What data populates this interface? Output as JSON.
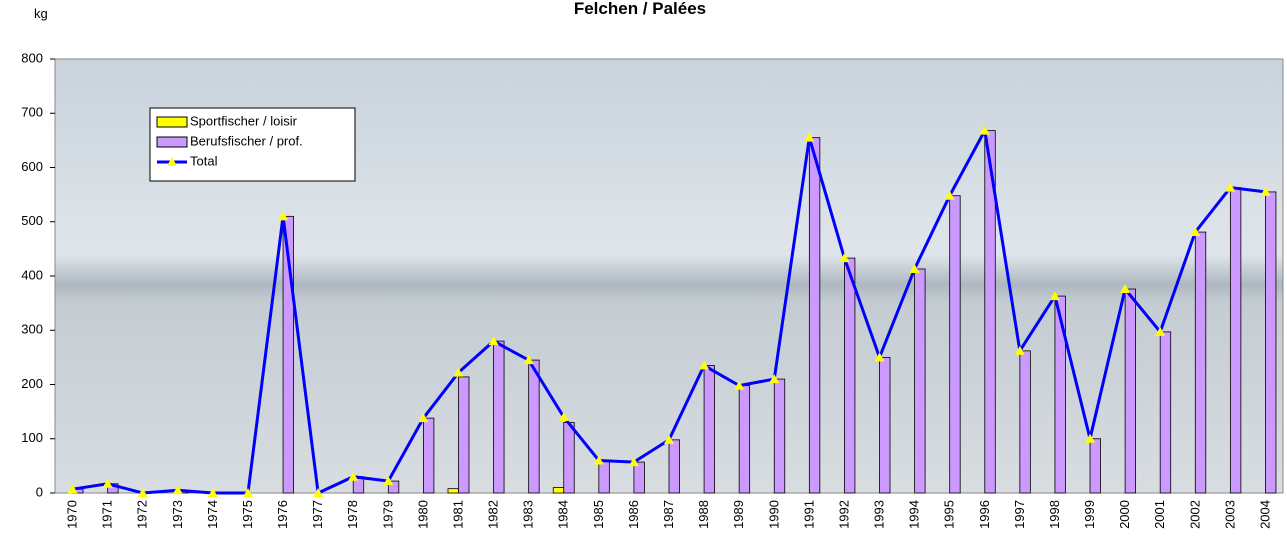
{
  "chart_data": {
    "type": "bar",
    "title": "Felchen / Palées",
    "y_label": "kg",
    "categories": [
      "1970",
      "1971",
      "1972",
      "1973",
      "1974",
      "1975",
      "1976",
      "1977",
      "1978",
      "1979",
      "1980",
      "1981",
      "1982",
      "1983",
      "1984",
      "1985",
      "1986",
      "1987",
      "1988",
      "1989",
      "1990",
      "1991",
      "1992",
      "1993",
      "1994",
      "1995",
      "1996",
      "1997",
      "1998",
      "1999",
      "2000",
      "2001",
      "2002",
      "2003",
      "2004"
    ],
    "series": [
      {
        "name": "Sportfischer / loisir",
        "type": "bar",
        "color": "#ffff00",
        "values": [
          0,
          0,
          0,
          0,
          0,
          0,
          0,
          0,
          0,
          0,
          0,
          8,
          0,
          0,
          10,
          0,
          0,
          0,
          0,
          0,
          0,
          0,
          0,
          0,
          0,
          0,
          0,
          0,
          0,
          0,
          0,
          0,
          0,
          0,
          0
        ]
      },
      {
        "name": "Berufsfischer / prof.",
        "type": "bar",
        "color": "#cc99ff",
        "values": [
          7,
          17,
          0,
          5,
          0,
          0,
          510,
          0,
          30,
          22,
          138,
          214,
          280,
          245,
          130,
          60,
          57,
          98,
          235,
          198,
          210,
          655,
          433,
          250,
          413,
          548,
          668,
          262,
          363,
          100,
          376,
          297,
          481,
          563,
          555
        ]
      },
      {
        "name": "Total",
        "type": "line",
        "color": "#0000ff",
        "values": [
          7,
          17,
          0,
          5,
          0,
          0,
          510,
          0,
          30,
          22,
          138,
          222,
          280,
          245,
          140,
          60,
          57,
          98,
          235,
          198,
          210,
          655,
          433,
          250,
          413,
          548,
          668,
          262,
          363,
          100,
          376,
          297,
          481,
          563,
          555
        ]
      }
    ],
    "ylim": [
      0,
      800
    ],
    "yticks": [
      0,
      100,
      200,
      300,
      400,
      500,
      600,
      700,
      800
    ]
  }
}
